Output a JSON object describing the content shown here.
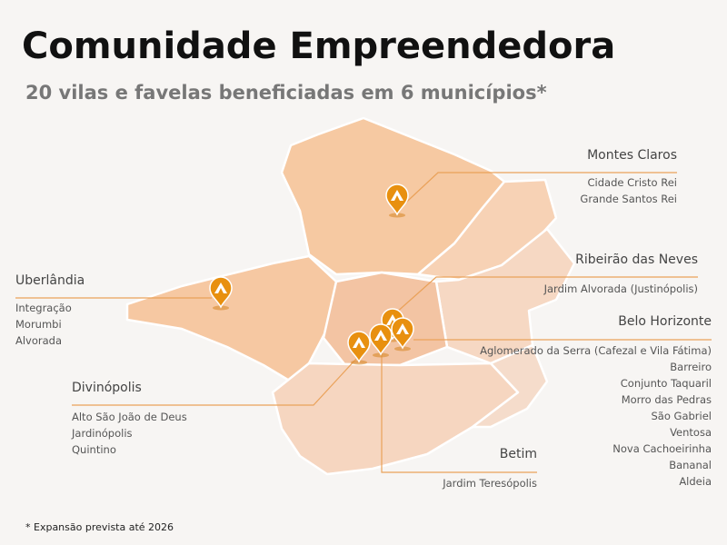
{
  "header": {
    "title": "Comunidade Empreendedora",
    "subtitle": "20 vilas e favelas beneficiadas em 6 municípios*"
  },
  "municipalities": [
    {
      "name": "Montes Claros",
      "communities": [
        "Cidade Cristo Rei",
        "Grande Santos Rei"
      ]
    },
    {
      "name": "Uberlândia",
      "communities": [
        "Integração",
        "Morumbi",
        "Alvorada"
      ]
    },
    {
      "name": "Ribeirão das Neves",
      "communities": [
        "Jardim Alvorada (Justinópolis)"
      ]
    },
    {
      "name": "Belo Horizonte",
      "communities": [
        "Aglomerado da Serra (Cafezal e Vila Fátima)",
        "Barreiro",
        "Conjunto Taquaril",
        "Morro das Pedras",
        "São Gabriel",
        "Ventosa",
        "Nova Cachoeirinha",
        "Bananal",
        "Aldeia"
      ]
    },
    {
      "name": "Divinópolis",
      "communities": [
        "Alto São João de Deus",
        "Jardinópolis",
        "Quintino"
      ]
    },
    {
      "name": "Betim",
      "communities": [
        "Jardim Teresópolis"
      ]
    }
  ],
  "footnote": "* Expansão prevista até 2026"
}
